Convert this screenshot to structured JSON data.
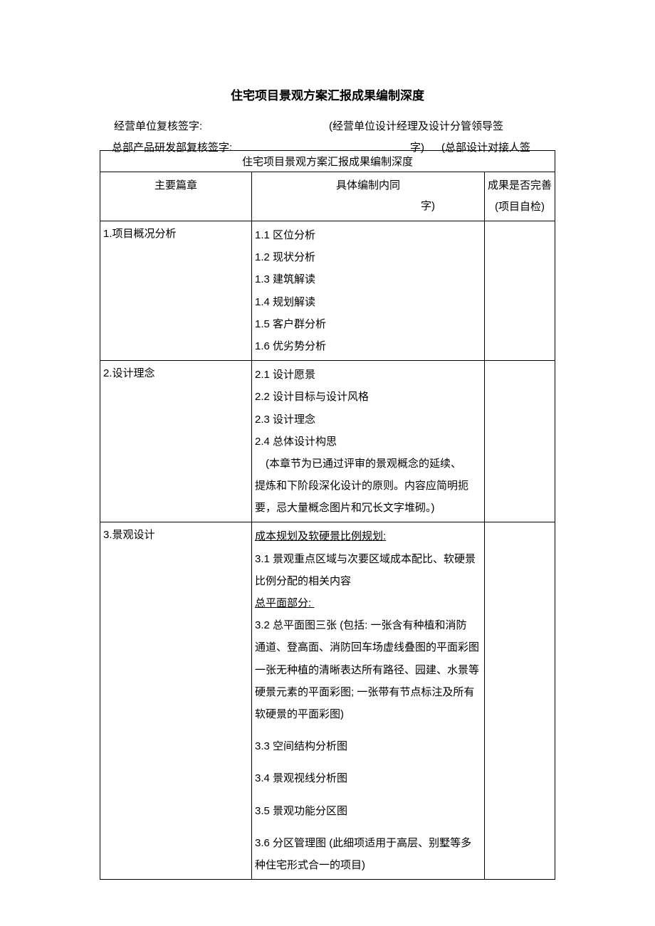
{
  "title": "住宅项目景观方案汇报成果编制深度",
  "sig": {
    "left1": "经营单位复核签字:",
    "right1": "(经营单位设计经理及设计分管领导签",
    "left2": "总部产品研发部复核签字:",
    "right2a": "字)",
    "right2b": "(总部设计对接人签",
    "zi": "字)"
  },
  "table": {
    "title": "住宅项目景观方案汇报成果编制深度",
    "headers": {
      "col1": "主要篇章",
      "col2": "具体编制内同",
      "col3_l1": "成果是否完善",
      "col3_l2": "(项目自检)"
    },
    "rows": [
      {
        "chapter": "1.项目概况分析",
        "lines": [
          {
            "t": "1.1 区位分析"
          },
          {
            "t": "1.2 现状分析"
          },
          {
            "t": "1.3 建筑解读"
          },
          {
            "t": "1.4 规划解读"
          },
          {
            "t": "1.5 客户群分析"
          },
          {
            "t": "1.6 优劣势分析"
          }
        ]
      },
      {
        "chapter": "2.设计理念",
        "lines": [
          {
            "t": "2.1 设计愿景"
          },
          {
            "t": "2.2 设计目标与设计风格"
          },
          {
            "t": "2.3 设计理念"
          },
          {
            "t": "2.4 总体设计构思"
          },
          {
            "t": "　(本章节为已通过评审的景观概念的延续、"
          },
          {
            "t": "提炼和下阶段深化设计的原则。内容应简明扼"
          },
          {
            "t": "要，忌大量概念图片和冗长文字堆砌。)"
          }
        ]
      },
      {
        "chapter": "3.景观设计",
        "lines": [
          {
            "t": "成本规划及软硬景比例规划:",
            "u": true
          },
          {
            "t": "3.1 景观重点区域与次要区域成本配比、软硬景"
          },
          {
            "t": "比例分配的相关内容"
          },
          {
            "t": "总平面部分: ",
            "u": true
          },
          {
            "t": "3.2 总平面图三张 (包括: 一张含有种植和消防"
          },
          {
            "t": "通道、登高面、消防回车场虚线叠图的平面彩图"
          },
          {
            "t": "一张无种植的清晰表达所有路径、园建、水景等"
          },
          {
            "t": "硬景元素的平面彩图; 一张带有节点标注及所有"
          },
          {
            "t": "软硬景的平面彩图)"
          },
          {
            "t": "3.3 空间结构分析图",
            "gap": true
          },
          {
            "t": "3.4 景观视线分析图",
            "gap": true
          },
          {
            "t": "3.5 景观功能分区图",
            "gap": true
          },
          {
            "t": "3.6 分区管理图 (此细项适用于高层、别墅等多",
            "gap": true
          },
          {
            "t": "种住宅形式合一的项目)"
          }
        ]
      }
    ]
  }
}
